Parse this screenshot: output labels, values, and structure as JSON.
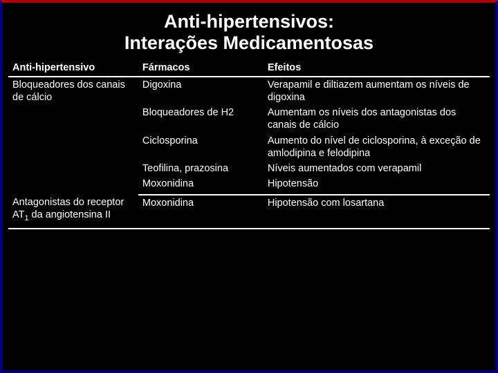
{
  "slide": {
    "title_line1": "Anti-hipertensivos:",
    "title_line2": "Interações Medicamentosas",
    "background_color": "#000000",
    "frame_top_color": "#b00000",
    "frame_side_color": "#000080",
    "text_color": "#ffffff",
    "title_fontsize": 27,
    "body_fontsize": 14.5
  },
  "table": {
    "columns": [
      "Anti-hipertensivo",
      "Fármacos",
      "Efeitos"
    ],
    "col_widths_pct": [
      27,
      26,
      47
    ],
    "groups": [
      {
        "category": "Bloqueadores dos canais de cálcio",
        "rows": [
          {
            "drug": "Digoxina",
            "effect": "Verapamil e diltiazem aumentam os níveis de digoxina"
          },
          {
            "drug": "Bloqueadores de H2",
            "effect": "Aumentam os níveis dos antagonistas dos canais de cálcio"
          },
          {
            "drug": "Ciclosporina",
            "effect": "Aumento do nível de ciclosporina, à exceção de amlodipina e felodipina"
          },
          {
            "drug": "Teofilina, prazosina",
            "effect": "Níveis aumentados com verapamil"
          },
          {
            "drug": "Moxonidina",
            "effect": "Hipotensão"
          }
        ]
      },
      {
        "category_html": "Antagonistas do receptor AT₁ da angiotensina II",
        "category_prefix": "Antagonistas do receptor AT",
        "category_sub": "1",
        "category_suffix": " da angiotensina II",
        "rows": [
          {
            "drug": "Moxonidina",
            "effect": "Hipotensão com losartana"
          }
        ]
      }
    ]
  }
}
